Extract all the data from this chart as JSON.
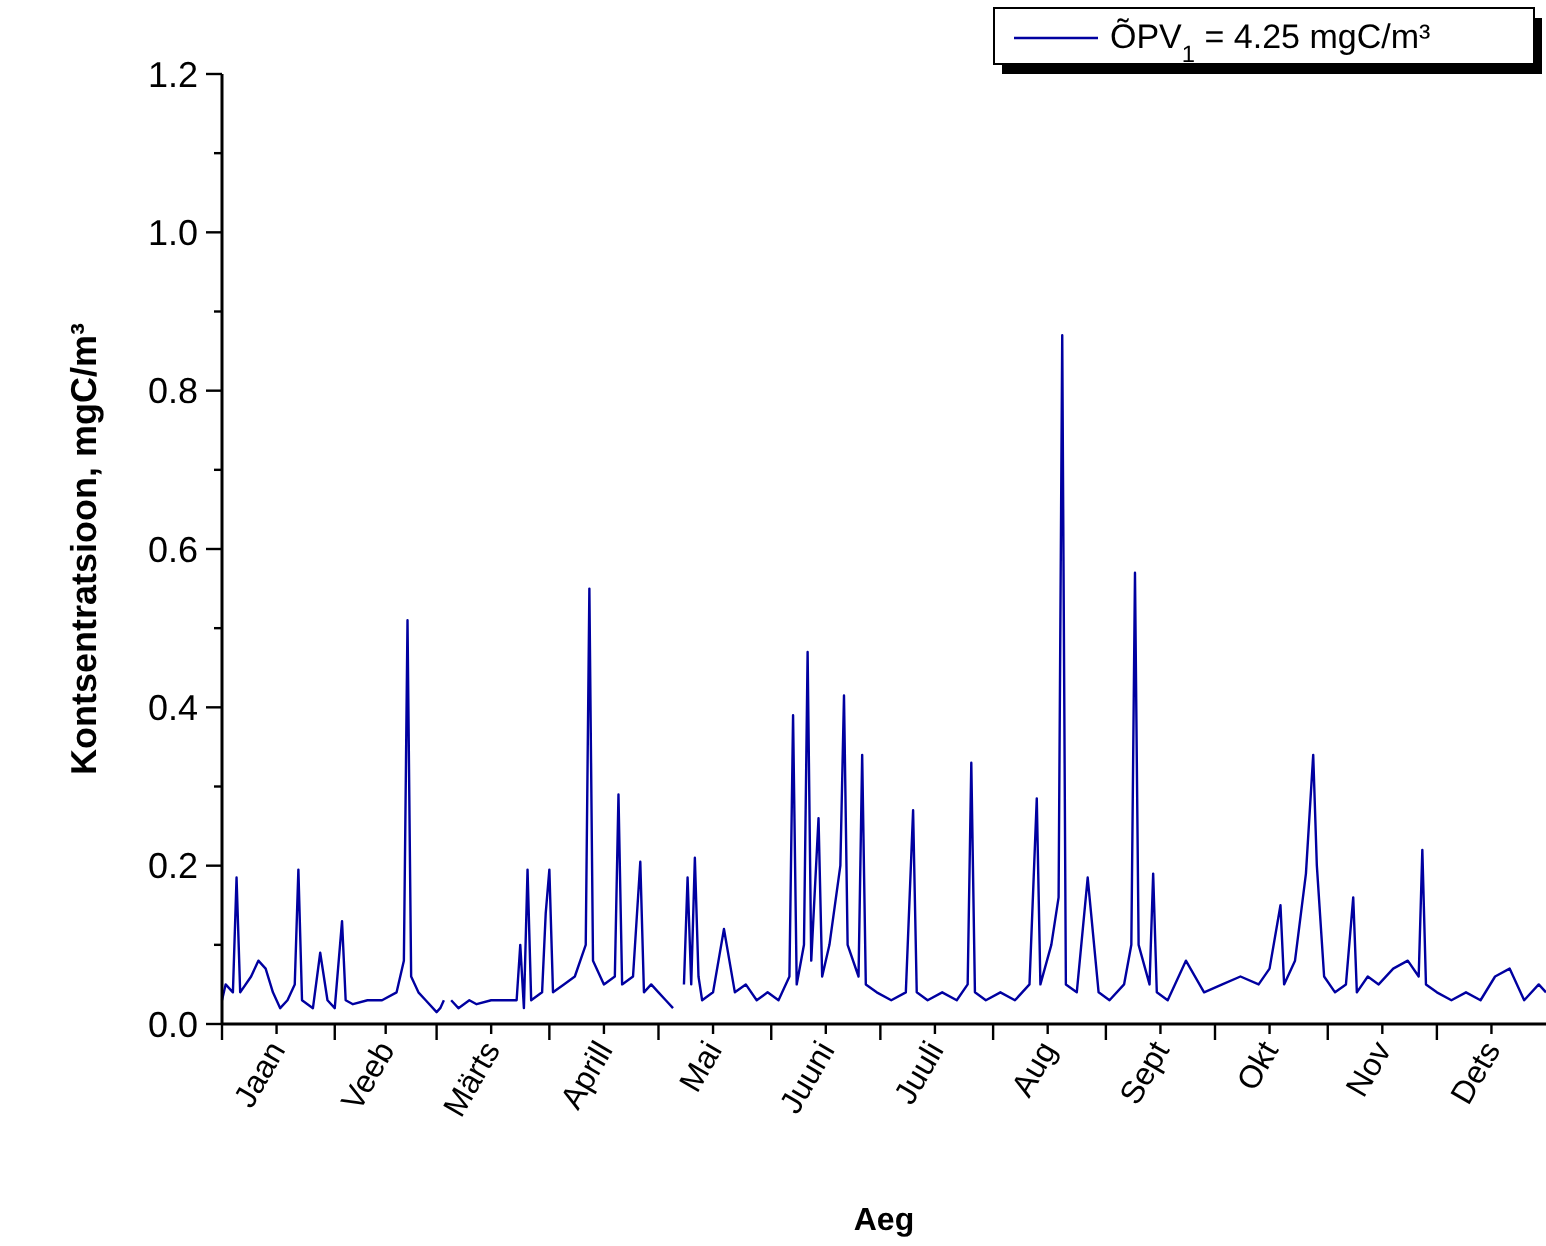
{
  "chart_data": {
    "type": "line",
    "xlabel": "Aeg",
    "ylabel": "Kontsentratsioon, mgC/m³",
    "xlim": [
      "--01-01",
      "--12-31"
    ],
    "ylim": [
      0,
      1.2
    ],
    "xticks": [
      {
        "value": "--01-01",
        "label": null
      },
      {
        "value": "--01-16",
        "label": "Jaan"
      },
      {
        "value": "--02-01",
        "label": null
      },
      {
        "value": "--02-15",
        "label": "Veeb"
      },
      {
        "value": "--03-01",
        "label": null
      },
      {
        "value": "--03-16",
        "label": "Märts"
      },
      {
        "value": "--04-01",
        "label": null
      },
      {
        "value": "--04-16",
        "label": "Aprill"
      },
      {
        "value": "--05-01",
        "label": null
      },
      {
        "value": "--05-16",
        "label": "Mai"
      },
      {
        "value": "--06-01",
        "label": null
      },
      {
        "value": "--06-16",
        "label": "Juuni"
      },
      {
        "value": "--07-01",
        "label": null
      },
      {
        "value": "--07-16",
        "label": "Juuli"
      },
      {
        "value": "--08-01",
        "label": null
      },
      {
        "value": "--08-16",
        "label": "Aug"
      },
      {
        "value": "--09-01",
        "label": null
      },
      {
        "value": "--09-16",
        "label": "Sept"
      },
      {
        "value": "--10-01",
        "label": null
      },
      {
        "value": "--10-16",
        "label": "Okt"
      },
      {
        "value": "--11-01",
        "label": null
      },
      {
        "value": "--11-16",
        "label": "Nov"
      },
      {
        "value": "--12-01",
        "label": null
      },
      {
        "value": "--12-16",
        "label": "Dets"
      }
    ],
    "yticks": [
      {
        "value": 0,
        "label": "0.0"
      },
      {
        "value": 0.1,
        "label": null
      },
      0.2,
      {
        "value": 0.3,
        "label": null
      },
      0.4,
      {
        "value": 0.5,
        "label": null
      },
      0.6,
      {
        "value": 0.7,
        "label": null
      },
      0.8,
      {
        "value": 0.9,
        "label": null
      },
      {
        "value": 1,
        "label": "1.0"
      },
      {
        "value": 1.1,
        "label": null
      },
      1.2
    ],
    "legend": "top right",
    "grid": false,
    "marker": "none",
    "line_style": "solid",
    "series": [
      {
        "name": "ÕPV$_{1}$ = 4.25 mgC/m³",
        "color": "#0000a0",
        "x": [
          "--01-01",
          "--01-02",
          "--01-04",
          "--01-05",
          "--01-06",
          "--01-09",
          "--01-11",
          "--01-13",
          "--01-15",
          "--01-17",
          "--01-19",
          "--01-21",
          "--01-22",
          "--01-23",
          "--01-26",
          "--01-28",
          "--01-30",
          "--02-01",
          "--02-03",
          "--02-04",
          "--02-06",
          "--02-10",
          "--02-14",
          "--02-18",
          "--02-20",
          "--02-21",
          "--02-22",
          "--02-24",
          "--02-26",
          "--03-01",
          "--03-02",
          "--03-03",
          "--03-04",
          "--03-05",
          "--03-07",
          "--03-10",
          "--03-12",
          "--03-16",
          "--03-20",
          "--03-23",
          "--03-24",
          "--03-25",
          "--03-26",
          "--03-27",
          "--03-30",
          "--03-31",
          "--04-01",
          "--04-02",
          "--04-05",
          "--04-08",
          "--04-11",
          "--04-12",
          "--04-13",
          "--04-16",
          "--04-19",
          "--04-20",
          "--04-21",
          "--04-24",
          "--04-26",
          "--04-27",
          "--04-29",
          "--05-01",
          "--05-03",
          "--05-05",
          "--05-06",
          "--05-08",
          "--05-09",
          "--05-10",
          "--05-11",
          "--05-12",
          "--05-13",
          "--05-16",
          "--05-19",
          "--05-22",
          "--05-25",
          "--05-28",
          "--05-31",
          "--06-03",
          "--06-06",
          "--06-07",
          "--06-08",
          "--06-10",
          "--06-11",
          "--06-12",
          "--06-14",
          "--06-15",
          "--06-17",
          "--06-20",
          "--06-21",
          "--06-22",
          "--06-25",
          "--06-26",
          "--06-27",
          "--06-30",
          "--07-04",
          "--07-08",
          "--07-10",
          "--07-11",
          "--07-14",
          "--07-18",
          "--07-22",
          "--07-25",
          "--07-26",
          "--07-27",
          "--07-30",
          "--08-03",
          "--08-07",
          "--08-11",
          "--08-13",
          "--08-14",
          "--08-17",
          "--08-19",
          "--08-20",
          "--08-21",
          "--08-24",
          "--08-27",
          "--08-30",
          "--09-02",
          "--09-06",
          "--09-08",
          "--09-09",
          "--09-10",
          "--09-13",
          "--09-14",
          "--09-15",
          "--09-18",
          "--09-23",
          "--09-28",
          "--10-03",
          "--10-08",
          "--10-13",
          "--10-16",
          "--10-19",
          "--10-20",
          "--10-23",
          "--10-26",
          "--10-28",
          "--10-29",
          "--10-31",
          "--11-03",
          "--11-06",
          "--11-08",
          "--11-09",
          "--11-12",
          "--11-15",
          "--11-19",
          "--11-23",
          "--11-26",
          "--11-27",
          "--11-28",
          "--12-01",
          "--12-05",
          "--12-09",
          "--12-13",
          "--12-17",
          "--12-21",
          "--12-25",
          "--12-29",
          "--12-31"
        ],
        "values": [
          0.03,
          0.05,
          0.04,
          0.185,
          0.04,
          0.06,
          0.08,
          0.07,
          0.04,
          0.02,
          0.03,
          0.05,
          0.195,
          0.03,
          0.02,
          0.09,
          0.03,
          0.02,
          0.13,
          0.03,
          0.025,
          0.03,
          0.03,
          0.04,
          0.08,
          0.51,
          0.06,
          0.04,
          0.03,
          0.015,
          0.02,
          0.03,
          null,
          0.03,
          0.02,
          0.03,
          0.025,
          0.03,
          0.03,
          0.03,
          0.1,
          0.02,
          0.195,
          0.03,
          0.04,
          0.14,
          0.195,
          0.04,
          0.05,
          0.06,
          0.1,
          0.55,
          0.08,
          0.05,
          0.06,
          0.29,
          0.05,
          0.06,
          0.205,
          0.04,
          0.05,
          0.04,
          0.03,
          0.02,
          null,
          0.05,
          0.185,
          0.05,
          0.21,
          0.06,
          0.03,
          0.04,
          0.12,
          0.04,
          0.05,
          0.03,
          0.04,
          0.03,
          0.06,
          0.39,
          0.05,
          0.1,
          0.47,
          0.08,
          0.26,
          0.06,
          0.1,
          0.2,
          0.415,
          0.1,
          0.06,
          0.34,
          0.05,
          0.04,
          0.03,
          0.04,
          0.27,
          0.04,
          0.03,
          0.04,
          0.03,
          0.05,
          0.33,
          0.04,
          0.03,
          0.04,
          0.03,
          0.05,
          0.285,
          0.05,
          0.1,
          0.16,
          0.87,
          0.05,
          0.04,
          0.185,
          0.04,
          0.03,
          0.05,
          0.1,
          0.57,
          0.1,
          0.05,
          0.19,
          0.04,
          0.03,
          0.08,
          0.04,
          0.05,
          0.06,
          0.05,
          0.07,
          0.15,
          0.05,
          0.08,
          0.19,
          0.34,
          0.2,
          0.06,
          0.04,
          0.05,
          0.16,
          0.04,
          0.06,
          0.05,
          0.07,
          0.08,
          0.06,
          0.22,
          0.05,
          0.04,
          0.03,
          0.04,
          0.03,
          0.06,
          0.07,
          0.03,
          0.05,
          0.04
        ]
      }
    ]
  }
}
